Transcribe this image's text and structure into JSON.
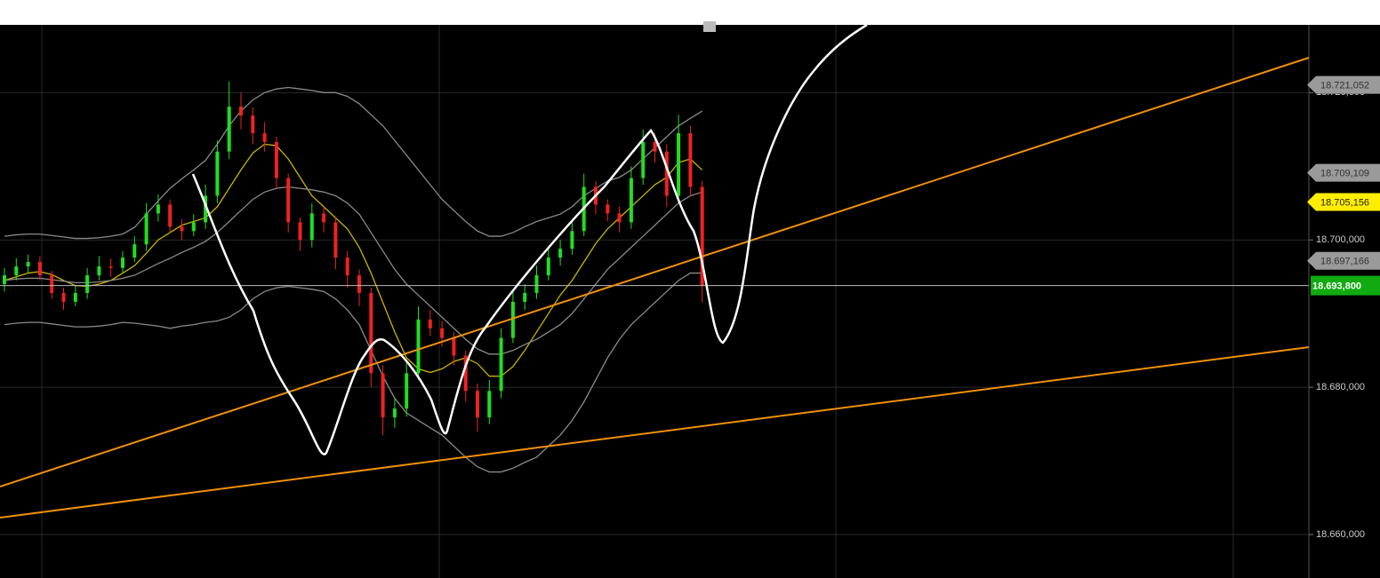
{
  "chart_data": {
    "type": "candlestick",
    "ylim": [
      18.6541,
      18.7292
    ],
    "yticks": [
      {
        "value": 18.66,
        "label": "18.660,000"
      },
      {
        "value": 18.68,
        "label": "18.680,000"
      },
      {
        "value": 18.7,
        "label": "18.700,000"
      },
      {
        "value": 18.72,
        "label": "18.720,000"
      }
    ],
    "grid": true,
    "up_color": "#22dd22",
    "down_color": "#ee2222",
    "ohlc": [
      [
        18.694,
        18.6962,
        18.693,
        18.6952
      ],
      [
        18.6952,
        18.6975,
        18.6945,
        18.6964
      ],
      [
        18.6964,
        18.698,
        18.6955,
        18.697
      ],
      [
        18.697,
        18.6978,
        18.6945,
        18.6952
      ],
      [
        18.6952,
        18.6958,
        18.692,
        18.6928
      ],
      [
        18.6928,
        18.6935,
        18.6905,
        18.6916
      ],
      [
        18.6916,
        18.6938,
        18.691,
        18.6928
      ],
      [
        18.6928,
        18.6962,
        18.692,
        18.6952
      ],
      [
        18.6952,
        18.6978,
        18.6945,
        18.6964
      ],
      [
        18.6964,
        18.6975,
        18.695,
        18.6962
      ],
      [
        18.6962,
        18.6985,
        18.6955,
        18.6976
      ],
      [
        18.6976,
        18.7005,
        18.697,
        18.6994
      ],
      [
        18.6994,
        18.705,
        18.6985,
        18.7036
      ],
      [
        18.7036,
        18.7062,
        18.7025,
        18.7048
      ],
      [
        18.7048,
        18.7055,
        18.701,
        18.7018
      ],
      [
        18.7018,
        18.7028,
        18.7,
        18.7012
      ],
      [
        18.7012,
        18.7035,
        18.7005,
        18.7024
      ],
      [
        18.7024,
        18.7075,
        18.7015,
        18.706
      ],
      [
        18.706,
        18.7135,
        18.705,
        18.712
      ],
      [
        18.712,
        18.7215,
        18.711,
        18.7181
      ],
      [
        18.7181,
        18.72,
        18.715,
        18.7169
      ],
      [
        18.7169,
        18.718,
        18.713,
        18.7145
      ],
      [
        18.7145,
        18.716,
        18.712,
        18.7133
      ],
      [
        18.7133,
        18.714,
        18.707,
        18.7084
      ],
      [
        18.7084,
        18.709,
        18.701,
        18.7024
      ],
      [
        18.7024,
        18.703,
        18.6985,
        18.7
      ],
      [
        18.7,
        18.705,
        18.699,
        18.7036
      ],
      [
        18.7036,
        18.7045,
        18.701,
        18.7024
      ],
      [
        18.7024,
        18.703,
        18.696,
        18.6976
      ],
      [
        18.6976,
        18.6985,
        18.6935,
        18.6952
      ],
      [
        18.6952,
        18.696,
        18.691,
        18.6928
      ],
      [
        18.6928,
        18.6935,
        18.68,
        18.6819
      ],
      [
        18.6819,
        18.683,
        18.6735,
        18.6759
      ],
      [
        18.6759,
        18.6785,
        18.6745,
        18.6771
      ],
      [
        18.6771,
        18.6835,
        18.676,
        18.6819
      ],
      [
        18.6819,
        18.691,
        18.681,
        18.6892
      ],
      [
        18.6892,
        18.6905,
        18.687,
        18.688
      ],
      [
        18.688,
        18.689,
        18.6855,
        18.6867
      ],
      [
        18.6867,
        18.6875,
        18.683,
        18.6843
      ],
      [
        18.6843,
        18.685,
        18.678,
        18.6795
      ],
      [
        18.6795,
        18.6805,
        18.674,
        18.6759
      ],
      [
        18.6759,
        18.681,
        18.675,
        18.6795
      ],
      [
        18.6795,
        18.688,
        18.6785,
        18.6867
      ],
      [
        18.6867,
        18.693,
        18.686,
        18.6916
      ],
      [
        18.6916,
        18.694,
        18.6905,
        18.6928
      ],
      [
        18.6928,
        18.6965,
        18.692,
        18.6952
      ],
      [
        18.6952,
        18.699,
        18.6945,
        18.6976
      ],
      [
        18.6976,
        18.7,
        18.6965,
        18.6988
      ],
      [
        18.6988,
        18.7025,
        18.698,
        18.7012
      ],
      [
        18.7012,
        18.709,
        18.7005,
        18.7072
      ],
      [
        18.7072,
        18.708,
        18.7035,
        18.7048
      ],
      [
        18.7048,
        18.7055,
        18.7025,
        18.7036
      ],
      [
        18.7036,
        18.7045,
        18.701,
        18.7024
      ],
      [
        18.7024,
        18.71,
        18.7015,
        18.7084
      ],
      [
        18.7084,
        18.715,
        18.7075,
        18.7133
      ],
      [
        18.7133,
        18.7145,
        18.7105,
        18.712
      ],
      [
        18.712,
        18.713,
        18.7045,
        18.706
      ],
      [
        18.706,
        18.717,
        18.705,
        18.7145
      ],
      [
        18.7145,
        18.7155,
        18.706,
        18.7072
      ],
      [
        18.7072,
        18.708,
        18.6915,
        18.6938
      ]
    ],
    "lines": [
      {
        "color": "#c8b400",
        "values": [
          18.6945,
          18.695,
          18.6955,
          18.6957,
          18.6953,
          18.6945,
          18.6938,
          18.6937,
          18.694,
          18.6945,
          18.6955,
          18.6965,
          18.6982,
          18.7,
          18.701,
          18.702,
          18.7025,
          18.703,
          18.7045,
          18.707,
          18.7095,
          18.7118,
          18.713,
          18.7128,
          18.711,
          18.7085,
          18.706,
          18.7045,
          18.703,
          18.7015,
          18.699,
          18.6955,
          18.6915,
          18.6875,
          18.684,
          18.6825,
          18.682,
          18.6825,
          18.6835,
          18.684,
          18.6832,
          18.6815,
          18.6815,
          18.6828,
          18.685,
          18.6875,
          18.69,
          18.6925,
          18.6945,
          18.697,
          18.6995,
          18.7015,
          18.703,
          18.7045,
          18.706,
          18.7075,
          18.7085,
          18.7105,
          18.711,
          18.7095
        ]
      },
      {
        "color": "#8a8a8a",
        "values": [
          18.6945,
          18.6947,
          18.6948,
          18.6948,
          18.6946,
          18.6944,
          18.6942,
          18.6942,
          18.6943,
          18.6945,
          18.6948,
          18.6952,
          18.696,
          18.6968,
          18.6975,
          18.6983,
          18.699,
          18.6998,
          18.701,
          18.7025,
          18.704,
          18.7055,
          18.7065,
          18.707,
          18.7072,
          18.707,
          18.7068,
          18.7065,
          18.706,
          18.705,
          18.7035,
          18.701,
          18.6985,
          18.696,
          18.694,
          18.6925,
          18.691,
          18.6895,
          18.688,
          18.6865,
          18.6852,
          18.6845,
          18.6845,
          18.685,
          18.6858,
          18.6865,
          18.6875,
          18.6885,
          18.69,
          18.692,
          18.694,
          18.696,
          18.6975,
          18.699,
          18.7005,
          18.702,
          18.7035,
          18.705,
          18.706,
          18.7065
        ]
      },
      {
        "color": "#8a8a8a",
        "values": [
          18.7005,
          18.7007,
          18.7008,
          18.7008,
          18.7006,
          18.7004,
          18.7002,
          18.7002,
          18.7003,
          18.7005,
          18.7008,
          18.7017,
          18.7035,
          18.7053,
          18.707,
          18.7083,
          18.7095,
          18.7108,
          18.713,
          18.7155,
          18.7175,
          18.719,
          18.72,
          18.7205,
          18.7207,
          18.7205,
          18.7203,
          18.72,
          18.72,
          18.7195,
          18.7185,
          18.717,
          18.7155,
          18.7135,
          18.7115,
          18.7095,
          18.7075,
          18.7055,
          18.704,
          18.7025,
          18.7012,
          18.7005,
          18.7005,
          18.701,
          18.7018,
          18.7025,
          18.703,
          18.7035,
          18.7045,
          18.706,
          18.707,
          18.708,
          18.7085,
          18.7095,
          18.711,
          18.7125,
          18.714,
          18.7155,
          18.7165,
          18.7175
        ]
      },
      {
        "color": "#8a8a8a",
        "values": [
          18.6885,
          18.6887,
          18.6888,
          18.6888,
          18.6886,
          18.6884,
          18.6882,
          18.6882,
          18.6883,
          18.6885,
          18.6888,
          18.6887,
          18.6885,
          18.6883,
          18.688,
          18.6883,
          18.6885,
          18.6888,
          18.689,
          18.6895,
          18.6905,
          18.692,
          18.693,
          18.6935,
          18.6937,
          18.6935,
          18.6933,
          18.693,
          18.692,
          18.6905,
          18.6885,
          18.685,
          18.6815,
          18.6785,
          18.6765,
          18.6755,
          18.6745,
          18.6735,
          18.672,
          18.6705,
          18.6692,
          18.6685,
          18.6685,
          18.669,
          18.6698,
          18.6705,
          18.672,
          18.6735,
          18.6755,
          18.678,
          18.681,
          18.684,
          18.6865,
          18.6885,
          18.69,
          18.6915,
          18.693,
          18.6945,
          18.6955,
          18.6955
        ]
      }
    ],
    "price_tags": [
      {
        "label": "18.721,052",
        "value": 18.721052,
        "color": "#9a9a9a",
        "text_color": "#333333"
      },
      {
        "label": "18.709,109",
        "value": 18.709109,
        "color": "#9a9a9a",
        "text_color": "#333333"
      },
      {
        "label": "18.705,156",
        "value": 18.705156,
        "color": "#ffee00",
        "text_color": "#222222"
      },
      {
        "label": "18.697,166",
        "value": 18.697166,
        "color": "#9a9a9a",
        "text_color": "#333333"
      },
      {
        "label": "18.693,800",
        "value": 18.6938,
        "color": "#11aa11",
        "text_color": "#ffffff"
      }
    ]
  }
}
